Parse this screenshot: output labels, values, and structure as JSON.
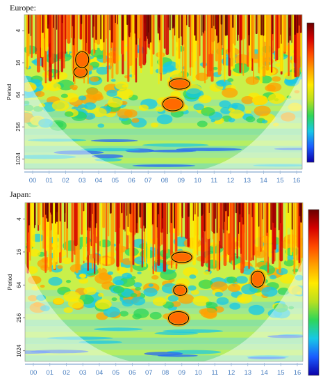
{
  "chart_data": [
    {
      "type": "heatmap",
      "title": "Europe:",
      "ylabel": "Period",
      "y_ticks": [
        "4",
        "16",
        "64",
        "256",
        "1024"
      ],
      "x_ticks": [
        "00",
        "01",
        "02",
        "03",
        "04",
        "05",
        "06",
        "07",
        "08",
        "09",
        "10",
        "11",
        "12",
        "13",
        "14",
        "15",
        "16"
      ],
      "y_scale": "log2",
      "y_inverted": true,
      "ylim": [
        2,
        1600
      ],
      "colorbar": true,
      "colormap": [
        "#0b00a8",
        "#1a5cff",
        "#17c8e6",
        "#2ed65a",
        "#b8e020",
        "#ffea00",
        "#ffa000",
        "#ff4a00",
        "#d40000",
        "#6a0000"
      ],
      "high_power_regions": [
        {
          "x": 2.9,
          "period": 24
        },
        {
          "x": 8.5,
          "period": 96
        },
        {
          "x": 3.0,
          "period": 14
        },
        {
          "x": 8.9,
          "period": 40
        }
      ]
    },
    {
      "type": "heatmap",
      "title": "Japan:",
      "ylabel": "Period",
      "y_ticks": [
        "4",
        "16",
        "64",
        "256",
        "1024"
      ],
      "x_ticks": [
        "00",
        "01",
        "02",
        "03",
        "04",
        "05",
        "06",
        "07",
        "08",
        "09",
        "10",
        "11",
        "12",
        "13",
        "14",
        "15",
        "16"
      ],
      "y_scale": "log2",
      "y_inverted": true,
      "ylim": [
        2,
        1600
      ],
      "colorbar": true,
      "colormap": [
        "#0b00a8",
        "#1a5cff",
        "#17c8e6",
        "#2ed65a",
        "#b8e020",
        "#ffea00",
        "#ffa000",
        "#ff4a00",
        "#d40000",
        "#6a0000"
      ],
      "high_power_regions": [
        {
          "x": 8.9,
          "period": 80
        },
        {
          "x": 8.8,
          "period": 260
        },
        {
          "x": 13.6,
          "period": 50
        },
        {
          "x": 9.0,
          "period": 20
        }
      ]
    }
  ]
}
